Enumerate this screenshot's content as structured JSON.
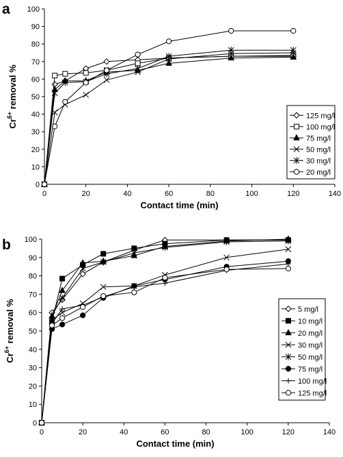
{
  "chart_data": [
    {
      "panel": "a",
      "type": "line",
      "xlabel": "Contact time (min)",
      "ylabel_main": "Cr",
      "ylabel_sup": "6+",
      "ylabel_rest": " removal %",
      "xlim": [
        0,
        140
      ],
      "ylim": [
        0,
        100
      ],
      "xticks": [
        0,
        20,
        40,
        60,
        80,
        100,
        120,
        140
      ],
      "yticks": [
        0,
        10,
        20,
        30,
        40,
        50,
        60,
        70,
        80,
        90,
        100
      ],
      "legend_position": "right",
      "series": [
        {
          "name": "125 mg/l",
          "marker": "diamond-open",
          "x": [
            0,
            5,
            10,
            20,
            30,
            45,
            60,
            90,
            120
          ],
          "y": [
            0,
            57,
            59,
            66,
            70,
            71,
            72,
            73,
            73
          ]
        },
        {
          "name": "100 mg/l",
          "marker": "square-open",
          "x": [
            0,
            5,
            10,
            20,
            30,
            45,
            60,
            90,
            120
          ],
          "y": [
            0,
            62,
            63,
            63.5,
            65,
            69,
            72,
            73,
            73.5
          ]
        },
        {
          "name": "75 mg/l",
          "marker": "triangle-filled",
          "x": [
            0,
            5,
            10,
            20,
            30,
            45,
            60,
            90,
            120
          ],
          "y": [
            0,
            54,
            59,
            59,
            64,
            65,
            69,
            72,
            72.5
          ]
        },
        {
          "name": "50 mg/l",
          "marker": "x",
          "x": [
            0,
            5,
            10,
            20,
            30,
            45,
            60,
            90,
            120
          ],
          "y": [
            0,
            41,
            45.5,
            51,
            59.5,
            64,
            71.5,
            74.5,
            75
          ]
        },
        {
          "name": "30 mg/l",
          "marker": "asterisk",
          "x": [
            0,
            5,
            10,
            20,
            30,
            45,
            60,
            90,
            120
          ],
          "y": [
            0,
            52,
            58,
            58.5,
            63,
            66,
            73,
            76.5,
            76.5
          ]
        },
        {
          "name": "20 mg/l",
          "marker": "circle-open",
          "x": [
            0,
            5,
            10,
            20,
            30,
            45,
            60,
            90,
            120
          ],
          "y": [
            0,
            33,
            47,
            58,
            65,
            74,
            81.5,
            87.5,
            87.5
          ]
        }
      ]
    },
    {
      "panel": "b",
      "type": "line",
      "xlabel": "Contact time (min)",
      "ylabel_main": "Cr",
      "ylabel_sup": "6+",
      "ylabel_rest": " removal %",
      "xlim": [
        0,
        140
      ],
      "ylim": [
        0,
        100
      ],
      "xticks": [
        0,
        20,
        40,
        60,
        80,
        100,
        120,
        140
      ],
      "yticks": [
        0,
        10,
        20,
        30,
        40,
        50,
        60,
        70,
        80,
        90,
        100
      ],
      "legend_position": "right",
      "series": [
        {
          "name": "5 mg/l",
          "marker": "diamond-open",
          "x": [
            0,
            5,
            10,
            20,
            30,
            45,
            60,
            90,
            120
          ],
          "y": [
            0,
            60,
            67,
            81,
            87.5,
            94,
            99.5,
            99.5,
            99.5
          ]
        },
        {
          "name": "10 mg/l",
          "marker": "square-filled",
          "x": [
            0,
            5,
            10,
            20,
            30,
            45,
            60,
            90,
            120
          ],
          "y": [
            0,
            55,
            78.5,
            86,
            92,
            95,
            97.5,
            99.5,
            99.5
          ]
        },
        {
          "name": "20 mg/l",
          "marker": "triangle-filled",
          "x": [
            0,
            5,
            10,
            20,
            30,
            45,
            60,
            90,
            120
          ],
          "y": [
            0,
            58,
            72,
            87,
            88,
            91,
            96,
            99,
            100
          ]
        },
        {
          "name": "30 mg/l",
          "marker": "x",
          "x": [
            0,
            5,
            10,
            20,
            30,
            45,
            60,
            90,
            120
          ],
          "y": [
            0,
            56,
            60,
            65,
            74,
            74.5,
            80.5,
            90,
            94.5
          ]
        },
        {
          "name": "50 mg/l",
          "marker": "asterisk",
          "x": [
            0,
            5,
            10,
            20,
            30,
            45,
            60,
            90,
            120
          ],
          "y": [
            0,
            58.5,
            68,
            84,
            87.5,
            92.5,
            95.5,
            98.5,
            99
          ]
        },
        {
          "name": "75 mg/l",
          "marker": "circle-filled",
          "x": [
            0,
            5,
            10,
            20,
            30,
            45,
            60,
            90,
            120
          ],
          "y": [
            0,
            51,
            53.5,
            58.5,
            68,
            74.5,
            78,
            85,
            88
          ]
        },
        {
          "name": "100 mg/l",
          "marker": "plus",
          "x": [
            0,
            5,
            10,
            20,
            30,
            45,
            60,
            90,
            120
          ],
          "y": [
            0,
            54,
            62,
            64,
            68.5,
            74,
            76,
            83,
            86.5
          ]
        },
        {
          "name": "125 mg/l",
          "marker": "circle-open",
          "x": [
            0,
            5,
            10,
            20,
            30,
            45,
            60,
            90,
            120
          ],
          "y": [
            0,
            53,
            57,
            63,
            69,
            71,
            79,
            83.5,
            84
          ]
        }
      ]
    }
  ]
}
